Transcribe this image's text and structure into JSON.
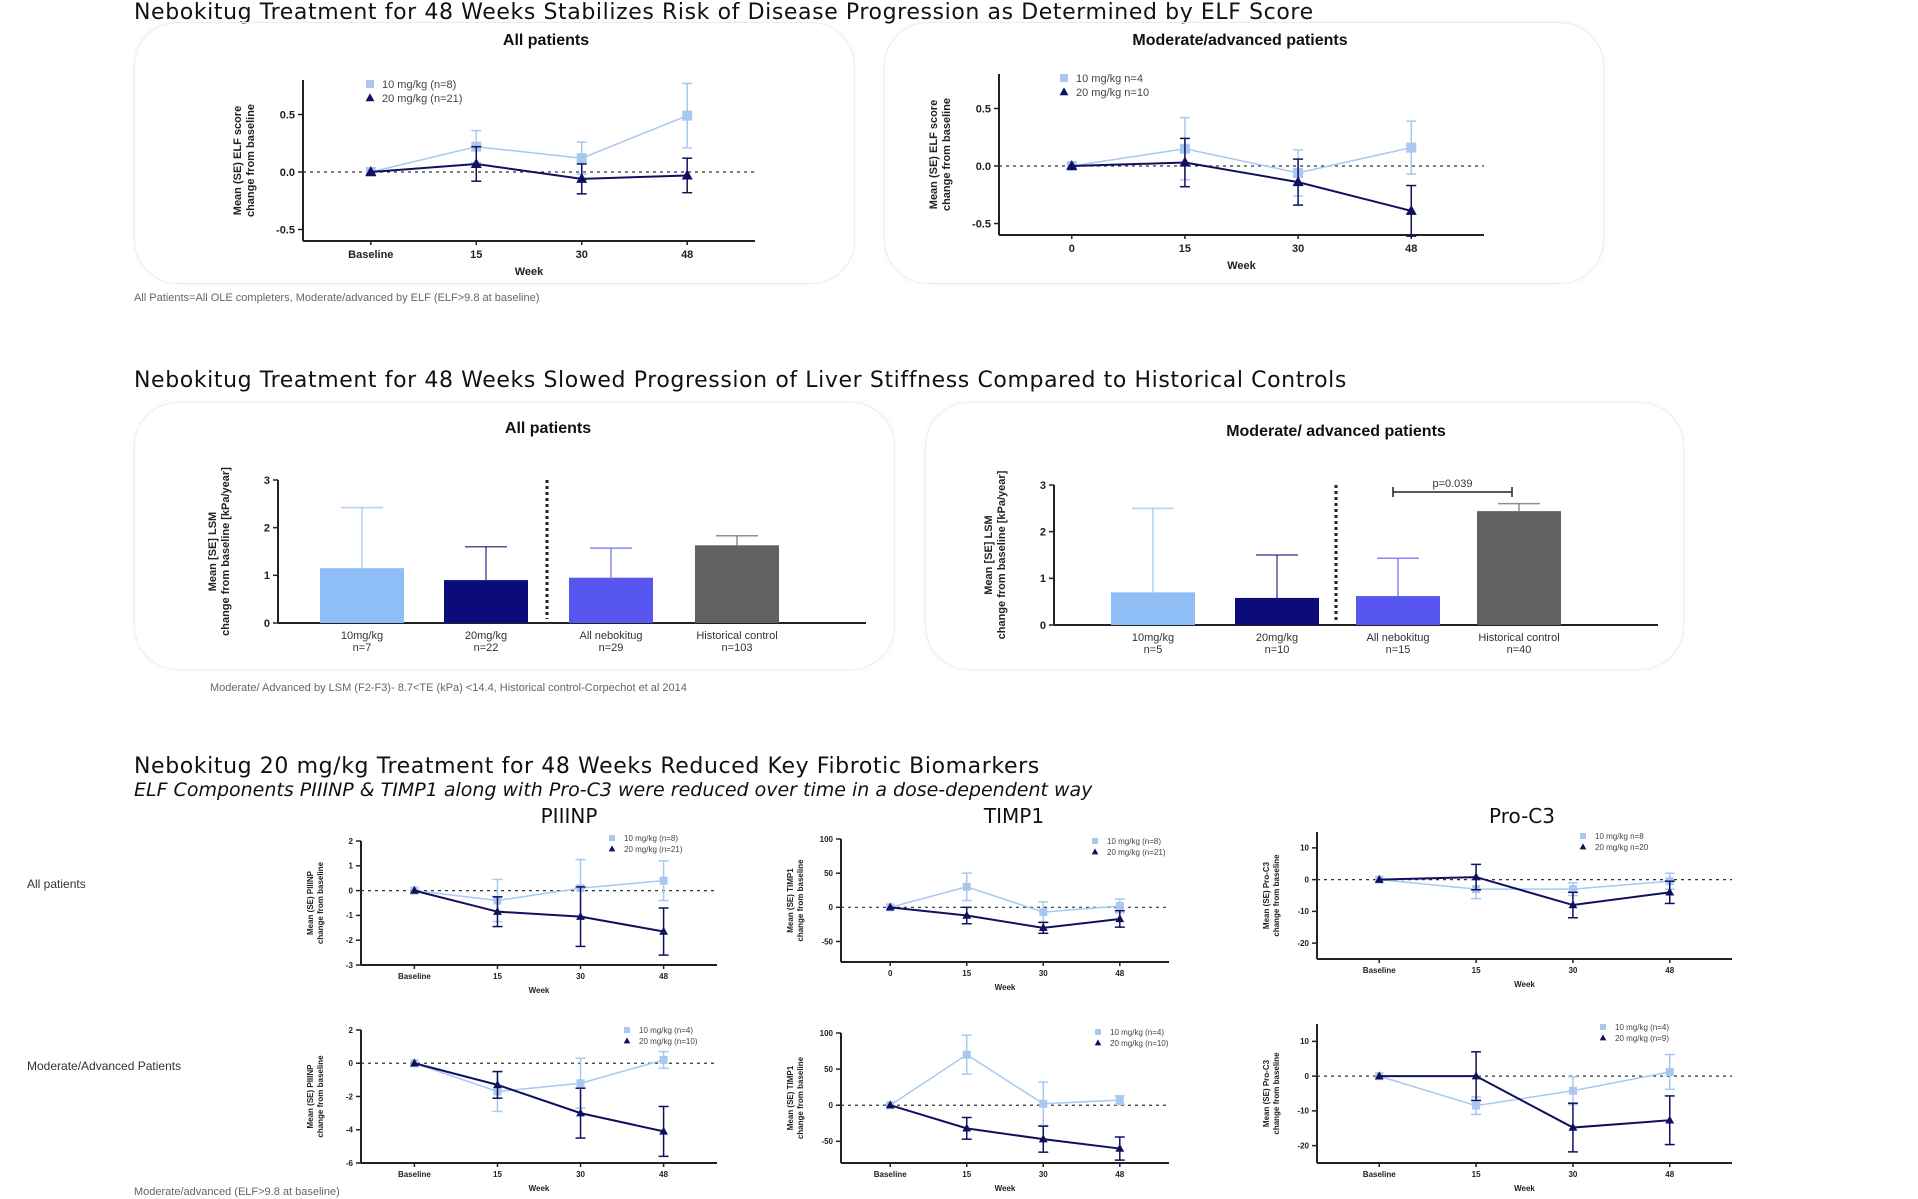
{
  "sections": [
    {
      "title": "Nebokitug Treatment for 48 Weeks Stabilizes Risk of Disease Progression as Determined by ELF Score",
      "panels": [
        "All patients",
        "Moderate/advanced patients"
      ],
      "footnote": "All Patients=All OLE completers, Moderate/advanced by ELF (ELF>9.8 at baseline)"
    },
    {
      "title": "Nebokitug Treatment for 48 Weeks Slowed Progression of Liver Stiffness Compared to Historical Controls",
      "panels": [
        "All patients",
        "Moderate/ advanced patients"
      ],
      "footnote": "Moderate/ Advanced by LSM (F2-F3)- 8.7<TE (kPa) <14.4, Historical control-Corpechot et al 2014"
    },
    {
      "title": "Nebokitug 20 mg/kg Treatment for 48 Weeks Reduced Key Fibrotic Biomarkers",
      "subtitle": "ELF Components PIIINP & TIMP1 along with Pro-C3 were reduced over time in a dose-dependent way",
      "columns": [
        "PIIINP",
        "TIMP1",
        "Pro-C3"
      ],
      "rows": [
        "All patients",
        "Moderate/Advanced Patients"
      ],
      "footnote": "Moderate/advanced (ELF>9.8 at baseline)"
    }
  ],
  "colors": {
    "dose_10": "#a9c8f0",
    "dose_20": "#10105e",
    "all_nebokitug": "#5757f0",
    "historical": "#616161",
    "title": "#111111"
  },
  "chart_data": [
    {
      "type": "line",
      "title": "All patients",
      "xlabel": "Week",
      "ylabel": [
        "Mean (SE) ELF score",
        "change from baseline"
      ],
      "categories": [
        "Baseline",
        "15",
        "30",
        "48"
      ],
      "ylim": [
        -0.6,
        0.8
      ],
      "yticks": [
        -0.5,
        0.0,
        0.5
      ],
      "ytick_labels": [
        "-0.5",
        "0.0",
        "0.5"
      ],
      "refline": 0,
      "series": [
        {
          "name": "10 mg/kg (n=8)",
          "marker": "square",
          "values": [
            0,
            0.22,
            0.12,
            0.49
          ],
          "se": [
            0,
            0.14,
            0.14,
            0.28
          ]
        },
        {
          "name": "20 mg/kg (n=21)",
          "marker": "triangle",
          "values": [
            0,
            0.07,
            -0.06,
            -0.03
          ],
          "se": [
            0,
            0.15,
            0.13,
            0.15
          ]
        }
      ]
    },
    {
      "type": "line",
      "title": "Moderate/advanced patients",
      "xlabel": "Week",
      "ylabel": [
        "Mean (SE) ELF score",
        "change from baseline"
      ],
      "categories": [
        "0",
        "15",
        "30",
        "48"
      ],
      "ylim": [
        -0.6,
        0.8
      ],
      "yticks": [
        -0.5,
        0.0,
        0.5
      ],
      "ytick_labels": [
        "-0.5",
        "0.0",
        "0.5"
      ],
      "refline": 0,
      "series": [
        {
          "name": "10 mg/kg n=4",
          "marker": "square",
          "values": [
            0,
            0.15,
            -0.06,
            0.16
          ],
          "se": [
            0,
            0.27,
            0.2,
            0.23
          ]
        },
        {
          "name": "20 mg/kg n=10",
          "marker": "triangle",
          "values": [
            0,
            0.03,
            -0.14,
            -0.39
          ],
          "se": [
            0,
            0.21,
            0.2,
            0.22
          ]
        }
      ]
    },
    {
      "type": "bar",
      "title": "All patients",
      "ylabel": [
        "Mean [SE] LSM",
        "change from baseline [kPa/year]"
      ],
      "categories": [
        [
          "10mg/kg",
          "n=7"
        ],
        [
          "20mg/kg",
          "n=22"
        ],
        [
          "All nebokitug",
          "n=29"
        ],
        [
          "Historical control",
          "n=103"
        ]
      ],
      "values": [
        1.15,
        0.9,
        0.95,
        1.63
      ],
      "se": [
        1.27,
        0.7,
        0.62,
        0.2
      ],
      "ylim": [
        0,
        3
      ],
      "yticks": [
        0,
        1,
        2,
        3
      ],
      "ytick_labels": [
        "0",
        "1",
        "2",
        "3"
      ],
      "bar_colors": [
        "#8fbdf5",
        "#0b0b7a",
        "#5757f0",
        "#616161"
      ],
      "divider_after": 2
    },
    {
      "type": "bar",
      "title": "Moderate/ advanced patients",
      "ylabel": [
        "Mean [SE] LSM",
        "change from baseline [kPa/year]"
      ],
      "categories": [
        [
          "10mg/kg",
          "n=5"
        ],
        [
          "20mg/kg",
          "n=10"
        ],
        [
          "All nebokitug",
          "n=15"
        ],
        [
          "Historical control",
          "n=40"
        ]
      ],
      "values": [
        0.7,
        0.58,
        0.62,
        2.44
      ],
      "se": [
        1.8,
        0.92,
        0.81,
        0.16
      ],
      "ylim": [
        0,
        3
      ],
      "yticks": [
        0,
        1,
        2,
        3
      ],
      "ytick_labels": [
        "0",
        "1",
        "2",
        "3"
      ],
      "bar_colors": [
        "#8fbdf5",
        "#0b0b7a",
        "#5757f0",
        "#616161"
      ],
      "divider_after": 2,
      "annotation": {
        "text": "p=0.039",
        "between": [
          2,
          3
        ],
        "y": 2.85
      }
    },
    {
      "type": "line",
      "title": "PIIINP — All patients",
      "xlabel": "Week",
      "ylabel": [
        "Mean (SE) PIIINP",
        "change from baseline"
      ],
      "categories": [
        "Baseline",
        "15",
        "30",
        "48"
      ],
      "ylim": [
        -3,
        2
      ],
      "yticks": [
        -3,
        -2,
        -1,
        0,
        1,
        2
      ],
      "ytick_labels": [
        "-3",
        "-2",
        "-1",
        "0",
        "1",
        "2"
      ],
      "refline": 0,
      "series": [
        {
          "name": "10 mg/kg (n=8)",
          "marker": "square",
          "values": [
            0,
            -0.4,
            0.1,
            0.4
          ],
          "se": [
            0,
            0.85,
            1.15,
            0.8
          ]
        },
        {
          "name": "20 mg/kg (n=21)",
          "marker": "triangle",
          "values": [
            0,
            -0.85,
            -1.05,
            -1.65
          ],
          "se": [
            0,
            0.6,
            1.2,
            0.95
          ]
        }
      ]
    },
    {
      "type": "line",
      "title": "TIMP1 — All patients",
      "xlabel": "Week",
      "ylabel": [
        "Mean (SE) TIMP1",
        "change from baseline"
      ],
      "categories": [
        "0",
        "15",
        "30",
        "48"
      ],
      "ylim": [
        -80,
        100
      ],
      "yticks": [
        -50,
        0,
        50,
        100
      ],
      "ytick_labels": [
        "-50",
        "0",
        "50",
        "100"
      ],
      "refline": 0,
      "series": [
        {
          "name": "10 mg/kg (n=8)",
          "marker": "square",
          "values": [
            0,
            30,
            -7,
            2
          ],
          "se": [
            0,
            20,
            15,
            10
          ]
        },
        {
          "name": "20 mg/kg (n=21)",
          "marker": "triangle",
          "values": [
            0,
            -12,
            -30,
            -17
          ],
          "se": [
            0,
            12,
            8,
            12
          ]
        }
      ]
    },
    {
      "type": "line",
      "title": "Pro-C3 — All patients",
      "xlabel": "Week",
      "ylabel": [
        "Mean (SE) Pro-C3",
        "change from baseline"
      ],
      "categories": [
        "Baseline",
        "15",
        "30",
        "48"
      ],
      "ylim": [
        -25,
        15
      ],
      "yticks": [
        -20,
        -10,
        0,
        10
      ],
      "ytick_labels": [
        "-20",
        "-10",
        "0",
        "10"
      ],
      "refline": 0,
      "series": [
        {
          "name": "10 mg/kg n=8",
          "marker": "square",
          "values": [
            0,
            -3,
            -3,
            -0.5
          ],
          "se": [
            0,
            3,
            2,
            2.5
          ]
        },
        {
          "name": "20 mg/kg n=20",
          "marker": "triangle",
          "values": [
            0,
            0.8,
            -8,
            -4
          ],
          "se": [
            0,
            4,
            4,
            3.5
          ]
        }
      ]
    },
    {
      "type": "line",
      "title": "PIIINP — Moderate/Advanced Patients",
      "xlabel": "Week",
      "ylabel": [
        "Mean (SE) PIIINP",
        "change from baseline"
      ],
      "categories": [
        "Baseline",
        "15",
        "30",
        "48"
      ],
      "ylim": [
        -6,
        2
      ],
      "yticks": [
        -6,
        -4,
        -2,
        0,
        2
      ],
      "ytick_labels": [
        "-6",
        "-4",
        "-2",
        "0",
        "2"
      ],
      "refline": 0,
      "series": [
        {
          "name": "10 mg/kg (n=4)",
          "marker": "square",
          "values": [
            0,
            -1.7,
            -1.2,
            0.2
          ],
          "se": [
            0,
            1.2,
            1.5,
            0.5
          ]
        },
        {
          "name": "20 mg/kg (n=10)",
          "marker": "triangle",
          "values": [
            0,
            -1.3,
            -3,
            -4.1
          ],
          "se": [
            0,
            0.8,
            1.5,
            1.5
          ]
        }
      ]
    },
    {
      "type": "line",
      "title": "TIMP1 — Moderate/Advanced Patients",
      "xlabel": "Week",
      "ylabel": [
        "Mean (SE) TIMP1",
        "change from baseline"
      ],
      "categories": [
        "Baseline",
        "15",
        "30",
        "48"
      ],
      "ylim": [
        -80,
        100
      ],
      "yticks": [
        -50,
        0,
        50,
        100
      ],
      "ytick_labels": [
        "-50",
        "0",
        "50",
        "100"
      ],
      "refline": 0,
      "series": [
        {
          "name": "10 mg/kg (n=4)",
          "marker": "square",
          "values": [
            0,
            70,
            2,
            7
          ],
          "se": [
            0,
            27,
            30,
            6
          ]
        },
        {
          "name": "20 mg/kg (n=10)",
          "marker": "triangle",
          "values": [
            0,
            -32,
            -47,
            -60
          ],
          "se": [
            0,
            15,
            18,
            16
          ]
        }
      ]
    },
    {
      "type": "line",
      "title": "Pro-C3 — Moderate/Advanced Patients",
      "xlabel": "Week",
      "ylabel": [
        "Mean (SE) Pro-C3",
        "change from baseline"
      ],
      "categories": [
        "Baseline",
        "15",
        "30",
        "48"
      ],
      "ylim": [
        -25,
        15
      ],
      "yticks": [
        -20,
        -10,
        0,
        10
      ],
      "ytick_labels": [
        "-20",
        "-10",
        "0",
        "10"
      ],
      "refline": 0,
      "series": [
        {
          "name": "10 mg/kg (n=4)",
          "marker": "square",
          "values": [
            0,
            -8.5,
            -4.2,
            1.2
          ],
          "se": [
            0,
            2.5,
            4,
            5
          ]
        },
        {
          "name": "20 mg/kg (n=9)",
          "marker": "triangle",
          "values": [
            0,
            0,
            -14.8,
            -12.7
          ],
          "se": [
            0,
            7,
            7,
            7
          ]
        }
      ]
    }
  ]
}
